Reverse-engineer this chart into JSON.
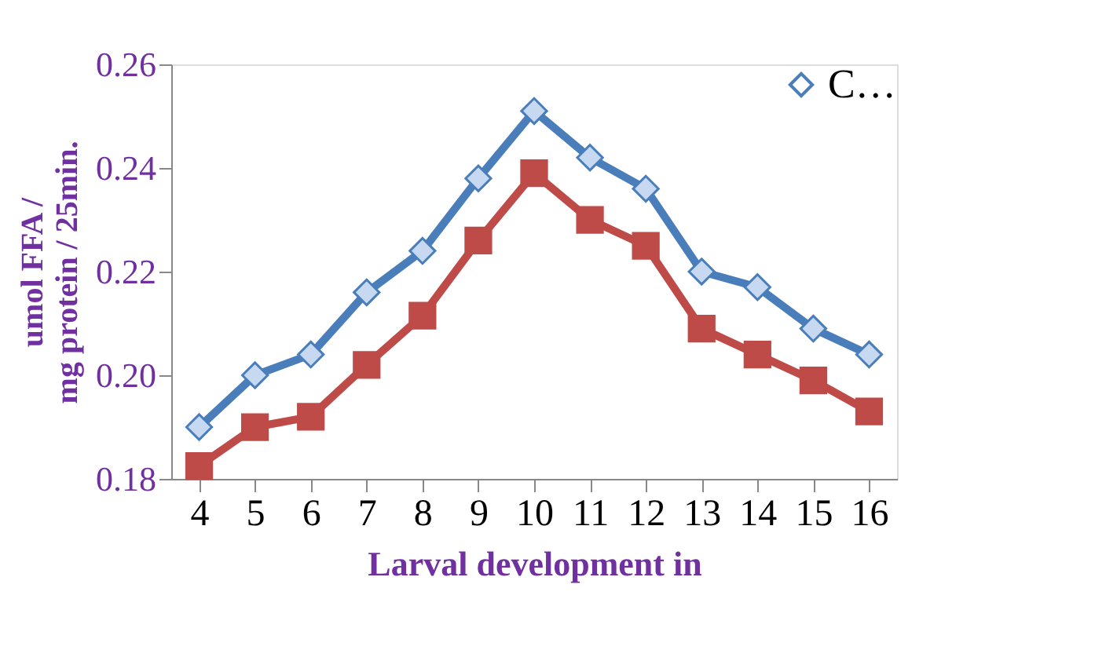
{
  "chart_data": {
    "type": "line",
    "xlabel": "Larval development in",
    "ylabel": "umol FFA / mg protein / 25min.",
    "categories": [
      "4",
      "5",
      "6",
      "7",
      "8",
      "9",
      "10",
      "11",
      "12",
      "13",
      "14",
      "15",
      "16"
    ],
    "series": [
      {
        "name": "C…",
        "color": "#4a7ebb",
        "marker": "diamond",
        "values": [
          0.19,
          0.2,
          0.204,
          0.216,
          0.224,
          0.238,
          0.251,
          0.242,
          0.236,
          0.22,
          0.217,
          0.209,
          0.204
        ]
      },
      {
        "color": "#be4b48",
        "marker": "square",
        "values": [
          0.1825,
          0.19,
          0.192,
          0.202,
          0.2115,
          0.226,
          0.239,
          0.23,
          0.225,
          0.209,
          0.204,
          0.199,
          0.193
        ]
      }
    ],
    "ylim": [
      0.18,
      0.26
    ],
    "yticks": [
      0.18,
      {
        "value": 0.2,
        "label": "0.20"
      },
      0.22,
      0.24,
      0.26
    ],
    "grid": false,
    "legend": "top right"
  }
}
